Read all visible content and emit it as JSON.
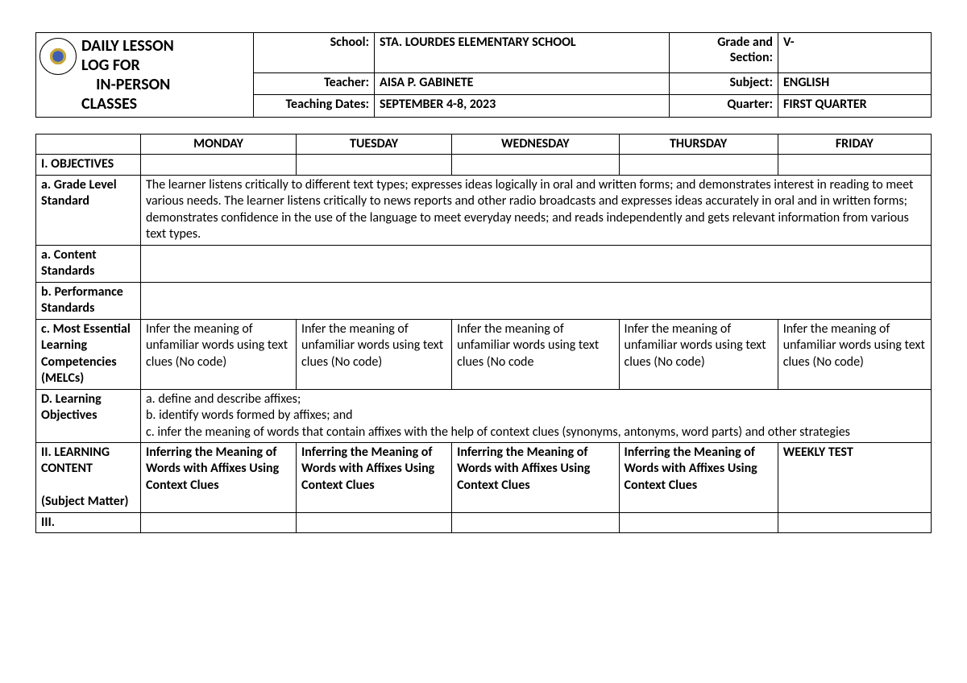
{
  "header": {
    "title_line1": "DAILY LESSON",
    "title_line2": "LOG FOR",
    "title_line3": "IN-PERSON",
    "title_line4": "CLASSES",
    "rows": [
      {
        "label1": "School:",
        "value1": "STA. LOURDES ELEMENTARY SCHOOL",
        "label2": "Grade and Section:",
        "value2": "V-"
      },
      {
        "label1": "Teacher:",
        "value1": "AISA P. GABINETE",
        "label2": "Subject:",
        "value2": "ENGLISH"
      },
      {
        "label1": "Teaching Dates:",
        "value1": "SEPTEMBER 4-8, 2023",
        "label2": "Quarter:",
        "value2": "FIRST QUARTER"
      }
    ]
  },
  "days": [
    "MONDAY",
    "TUESDAY",
    "WEDNESDAY",
    "THURSDAY",
    "FRIDAY"
  ],
  "rows": {
    "objectives_label": "I. OBJECTIVES",
    "grade_level": {
      "label": "a. Grade Level Standard",
      "text": "The learner listens critically to different text types; expresses ideas logically in oral and written forms; and demonstrates interest in reading to meet various needs. The learner listens critically to news reports and other radio broadcasts and expresses ideas accurately in oral and in written forms; demonstrates confidence in the use of the language to meet everyday needs; and reads independently and gets relevant information from various text types."
    },
    "content_std_label": "a. Content Standards",
    "perf_std_label": "b. Performance Standards",
    "melc": {
      "label": "c. Most Essential Learning Competencies (MELCs)",
      "cells": [
        "Infer the meaning of unfamiliar words using text clues (No code)",
        "Infer the meaning of unfamiliar words using text clues (No code)",
        "Infer the meaning of unfamiliar words using text clues (No code",
        "Infer the meaning of unfamiliar words using text clues (No code)",
        "Infer the meaning of unfamiliar words using text clues (No code)"
      ]
    },
    "learning_obj": {
      "label": "D. Learning Objectives",
      "text": "a. define and describe affixes;\nb. identify words formed by affixes; and\nc. infer the meaning of words that contain affixes with the help of context clues (synonyms, antonyms, word parts) and other strategies"
    },
    "content": {
      "label": "II. LEARNING CONTENT\n\n(Subject Matter)",
      "cells": [
        "Inferring the Meaning of Words with Affixes Using Context Clues",
        "Inferring the Meaning of Words with Affixes Using Context Clues",
        "Inferring the Meaning of Words with Affixes Using Context Clues",
        "Inferring the Meaning of Words with Affixes Using Context Clues",
        "WEEKLY TEST"
      ]
    },
    "iii_label": "III."
  }
}
